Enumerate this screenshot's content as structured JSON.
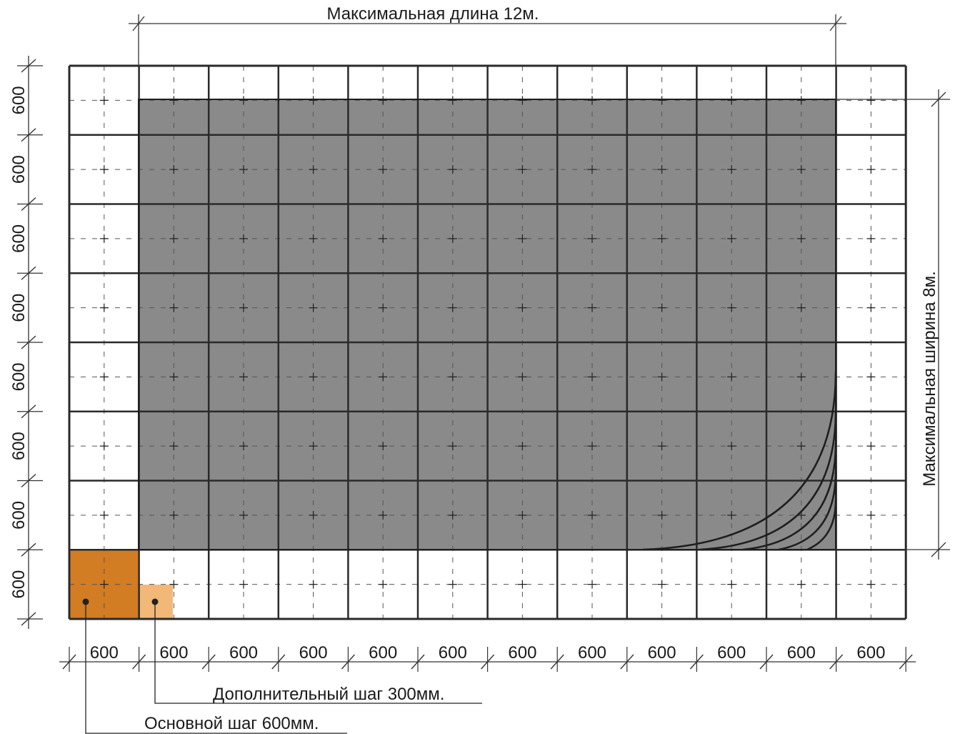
{
  "dimensions": {
    "max_length": "Максимальная длина 12м.",
    "max_width": "Максимальная ширина 8м.",
    "col_labels": [
      "600",
      "600",
      "600",
      "600",
      "600",
      "600",
      "600",
      "600",
      "600",
      "600",
      "600",
      "600"
    ],
    "row_labels": [
      "600",
      "600",
      "600",
      "600",
      "600",
      "600",
      "600",
      "600"
    ]
  },
  "legend": {
    "additional_step": "Дополнительный шаг 300мм.",
    "main_step": "Основной шаг 600мм."
  },
  "colors": {
    "max_area": "#8a8a8a",
    "main_tile": "#d27c24",
    "additional_tile": "#f2b878",
    "grid_line": "#2a2a2a",
    "dashed_line": "#555555"
  }
}
